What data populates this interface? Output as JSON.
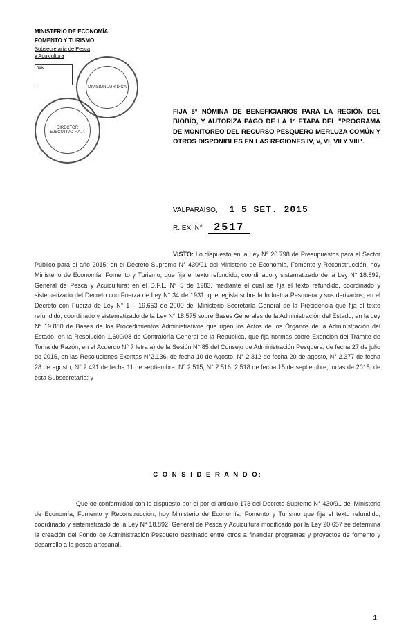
{
  "header": {
    "ministry": "MINISTERIO DE ECONOMÍA",
    "ministry2": "FOMENTO Y TURISMO",
    "sub1": "Subsecretaría de Pesca",
    "sub2": "y Acuicultura"
  },
  "stamps": {
    "stamp1_text": "DIVISION JURIDICA",
    "stamp2_text": "DIRECTOR EJECUTIVO F.A.P.",
    "box_text": "JAK"
  },
  "title": "FIJA 5° NÓMINA DE BENEFICIARIOS PARA LA REGIÓN DEL BIOBÍO, Y AUTORIZA PAGO DE LA 1° ETAPA DEL \"PROGRAMA DE MONITOREO DEL RECURSO PESQUERO MERLUZA COMÚN Y OTROS DISPONIBLES EN LAS REGIONES IV, V, VI, VII Y VIII\".",
  "location": "VALPARAÍSO,",
  "date": "1 5 SET. 2015",
  "rex_label": "R. EX. N°",
  "rex_number": "2517",
  "visto": {
    "label": "VISTO:",
    "text": "Lo dispuesto en la Ley N° 20.798 de Presupuestos para el Sector Público para el año 2015; en el Decreto Supremo N° 430/91 del Ministerio de Economía, Fomento y Reconstrucción, hoy Ministerio de Economía, Fomento y Turismo, que fija el texto refundido, coordinado y sistematizado de la Ley N° 18.892, General de Pesca y Acuicultura; en el D.F.L. N° 5 de 1983, mediante el cual se fija el texto refundido, coordinado y sistematizado del Decreto con Fuerza de Ley N° 34 de 1931, que legisla sobre la Industria Pesquera y sus derivados; en el Decreto con Fuerza de Ley N° 1 – 19.653 de 2000 del Ministerio Secretaría General de la Presidencia que fija el texto refundido, coordinado y sistematizado de la Ley N° 18.575 sobre Bases Generales de la Administración del Estado; en la Ley N° 19.880 de Bases de los Procedimientos Administrativos que rigen los Actos de los Órganos de la Administración del Estado, en la Resolución 1.600/08 de Contraloría General de la República, que fija normas sobre Exención del Trámite de Toma de Razón; en el Acuerdo N° 7 letra a) de la Sesión N° 85 del Consejo de Administración Pesquera, de fecha 27 de julio de 2015, en las Resoluciones Exentas N°2.136, de fecha 10 de Agosto, N° 2.312 de fecha 20 de agosto, N° 2.377 de fecha 28 de agosto, N° 2.491 de fecha 11 de septiembre, N° 2.515, N° 2.516, 2.518 de fecha 15 de septiembre, todas de 2015, de ésta Subsecretaría; y"
  },
  "considerando": {
    "title": "C O N S I D E R A N D O:",
    "text": "Que de conformidad con lo dispuesto por el por el artículo 173 del Decreto Supremo N° 430/91 del Ministerio de Economía, Fomento y Reconstrucción, hoy Ministerio de Economía, Fomento y Turismo que fija el texto refundido, coordinado y sistematizado de la Ley N° 18.892, General de Pesca y Acuicultura modificado por la Ley 20.657 se determina la creación del Fondo de Administración Pesquero destinado entre otros a financiar programas y proyectos de fomento y desarrollo a la pesca artesanal."
  },
  "page_number": "1",
  "colors": {
    "text": "#2a2a2a",
    "background": "#ffffff",
    "stamp": "#333333"
  }
}
